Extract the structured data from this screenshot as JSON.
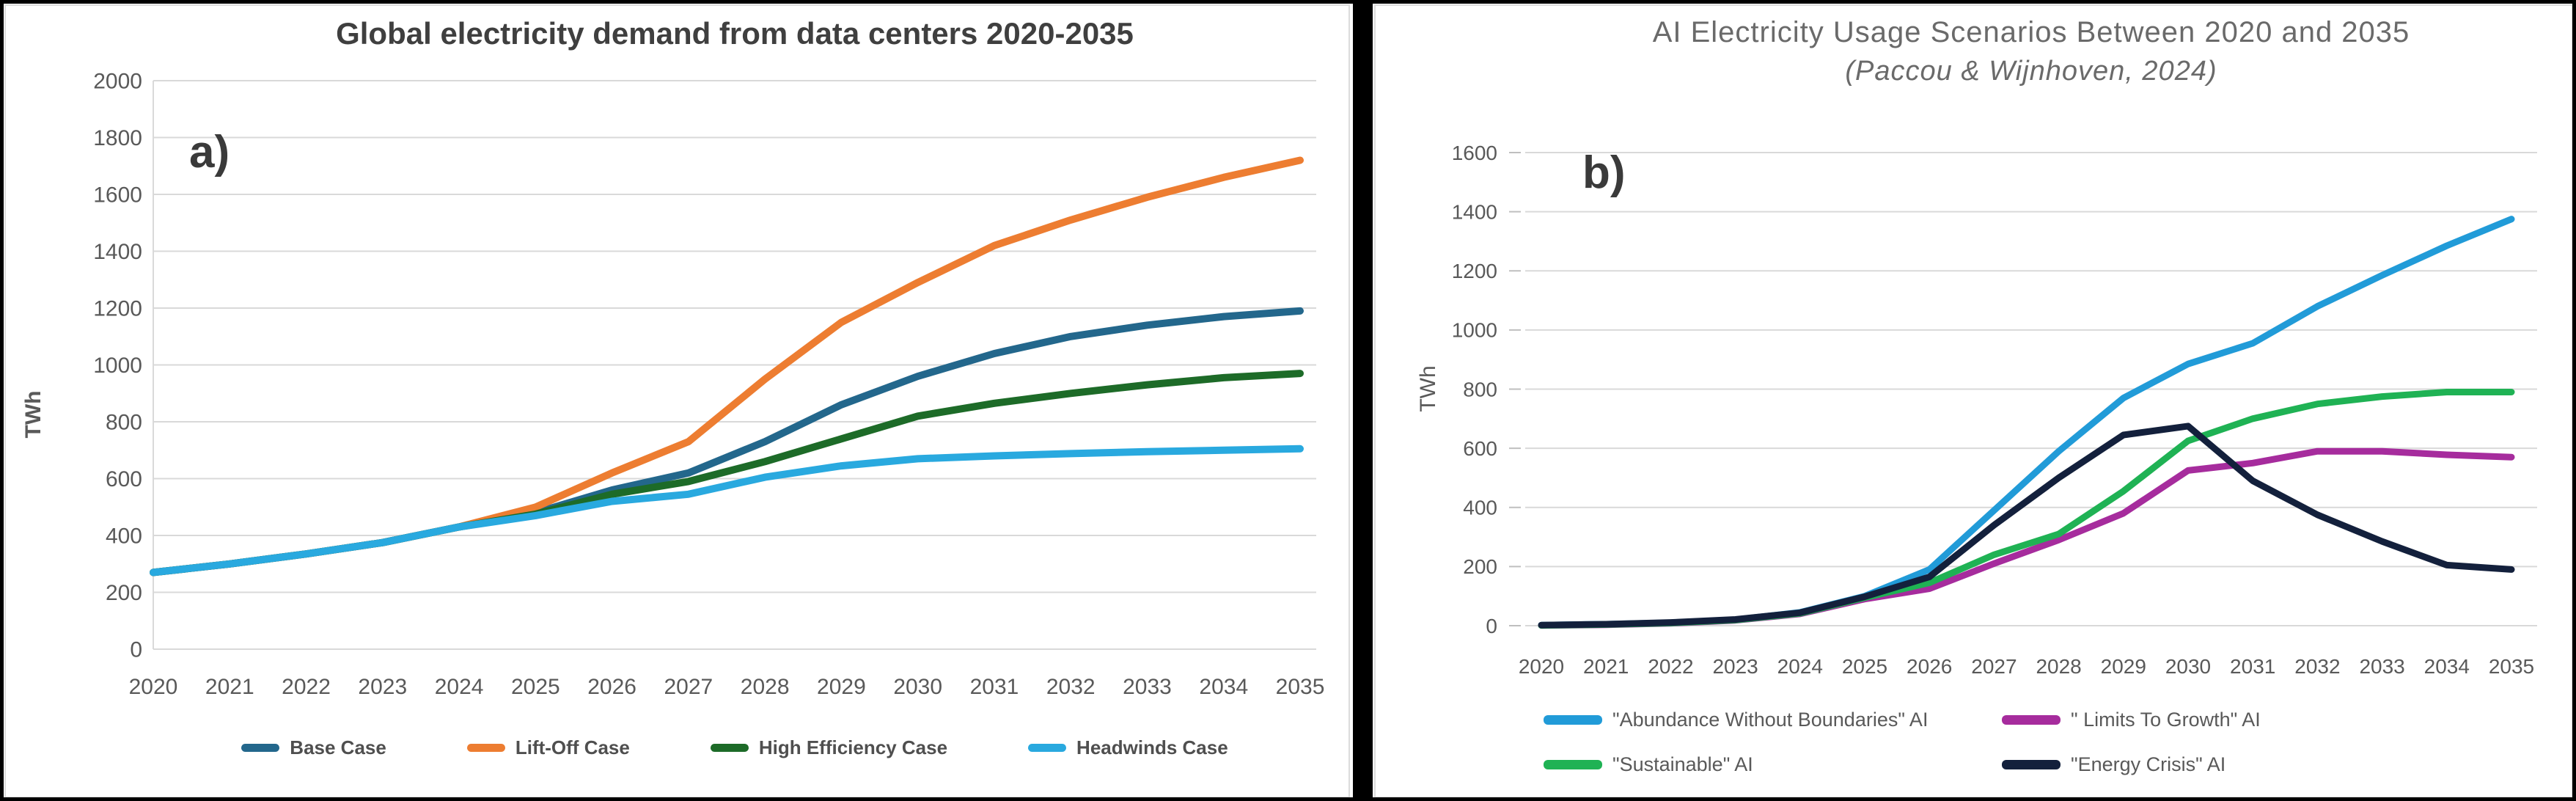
{
  "page": {
    "background_color": "#ffffff",
    "divider_color": "#000000",
    "grid_color": "#d9d9d9",
    "axis_color": "#bfbfbf",
    "tick_text_color": "#595959"
  },
  "chart_data": [
    {
      "type": "line",
      "panel_label": "a)",
      "title": "Global electricity demand from data centers 2020-2035",
      "subtitle": "",
      "ylabel": "TWh",
      "xlabel": "",
      "x": [
        2020,
        2021,
        2022,
        2023,
        2024,
        2025,
        2026,
        2027,
        2028,
        2029,
        2030,
        2031,
        2032,
        2033,
        2034,
        2035
      ],
      "ylim": [
        0,
        2000
      ],
      "ystep": 200,
      "grid": true,
      "legend_position": "bottom",
      "series": [
        {
          "name": "Base Case",
          "color": "#23678C",
          "values": [
            270,
            300,
            335,
            375,
            430,
            480,
            560,
            620,
            730,
            860,
            960,
            1040,
            1100,
            1140,
            1170,
            1190
          ]
        },
        {
          "name": "Lift-Off Case",
          "color": "#ED7D31",
          "values": [
            270,
            300,
            335,
            375,
            430,
            500,
            620,
            730,
            950,
            1150,
            1290,
            1420,
            1510,
            1590,
            1660,
            1720
          ]
        },
        {
          "name": "High Efficiency Case",
          "color": "#1D6B28",
          "values": [
            270,
            300,
            335,
            375,
            430,
            475,
            545,
            590,
            660,
            740,
            820,
            865,
            900,
            930,
            955,
            970
          ]
        },
        {
          "name": "Headwinds Case",
          "color": "#29A9DF",
          "values": [
            270,
            300,
            335,
            375,
            430,
            470,
            520,
            545,
            605,
            645,
            670,
            680,
            688,
            695,
            700,
            705
          ]
        }
      ]
    },
    {
      "type": "line",
      "panel_label": "b)",
      "title": "AI Electricity Usage Scenarios Between 2020 and 2035",
      "subtitle": "(Paccou & Wijnhoven, 2024)",
      "ylabel": "TWh",
      "xlabel": "",
      "x": [
        2020,
        2021,
        2022,
        2023,
        2024,
        2025,
        2026,
        2027,
        2028,
        2029,
        2030,
        2031,
        2032,
        2033,
        2034,
        2035
      ],
      "ylim": [
        0,
        1600
      ],
      "ystep": 200,
      "grid": true,
      "legend_position": "bottom",
      "series": [
        {
          "name": "\"Abundance Without Boundaries\" AI",
          "color": "#219BD8",
          "values": [
            2,
            5,
            10,
            20,
            45,
            100,
            190,
            390,
            590,
            770,
            885,
            955,
            1080,
            1185,
            1285,
            1375
          ]
        },
        {
          "name": "\" Limits To Growth\" AI",
          "color": "#A62C9D",
          "values": [
            1,
            3,
            8,
            18,
            40,
            90,
            125,
            210,
            290,
            380,
            525,
            550,
            590,
            590,
            578,
            570
          ]
        },
        {
          "name": "\"Sustainable\" AI",
          "color": "#1FB254",
          "values": [
            1,
            4,
            9,
            19,
            42,
            95,
            145,
            240,
            310,
            455,
            625,
            700,
            750,
            775,
            790,
            790
          ]
        },
        {
          "name": "\"Energy Crisis\" AI",
          "color": "#13203C",
          "values": [
            2,
            5,
            11,
            21,
            44,
            98,
            165,
            340,
            500,
            645,
            675,
            490,
            375,
            285,
            205,
            190
          ]
        }
      ]
    }
  ]
}
